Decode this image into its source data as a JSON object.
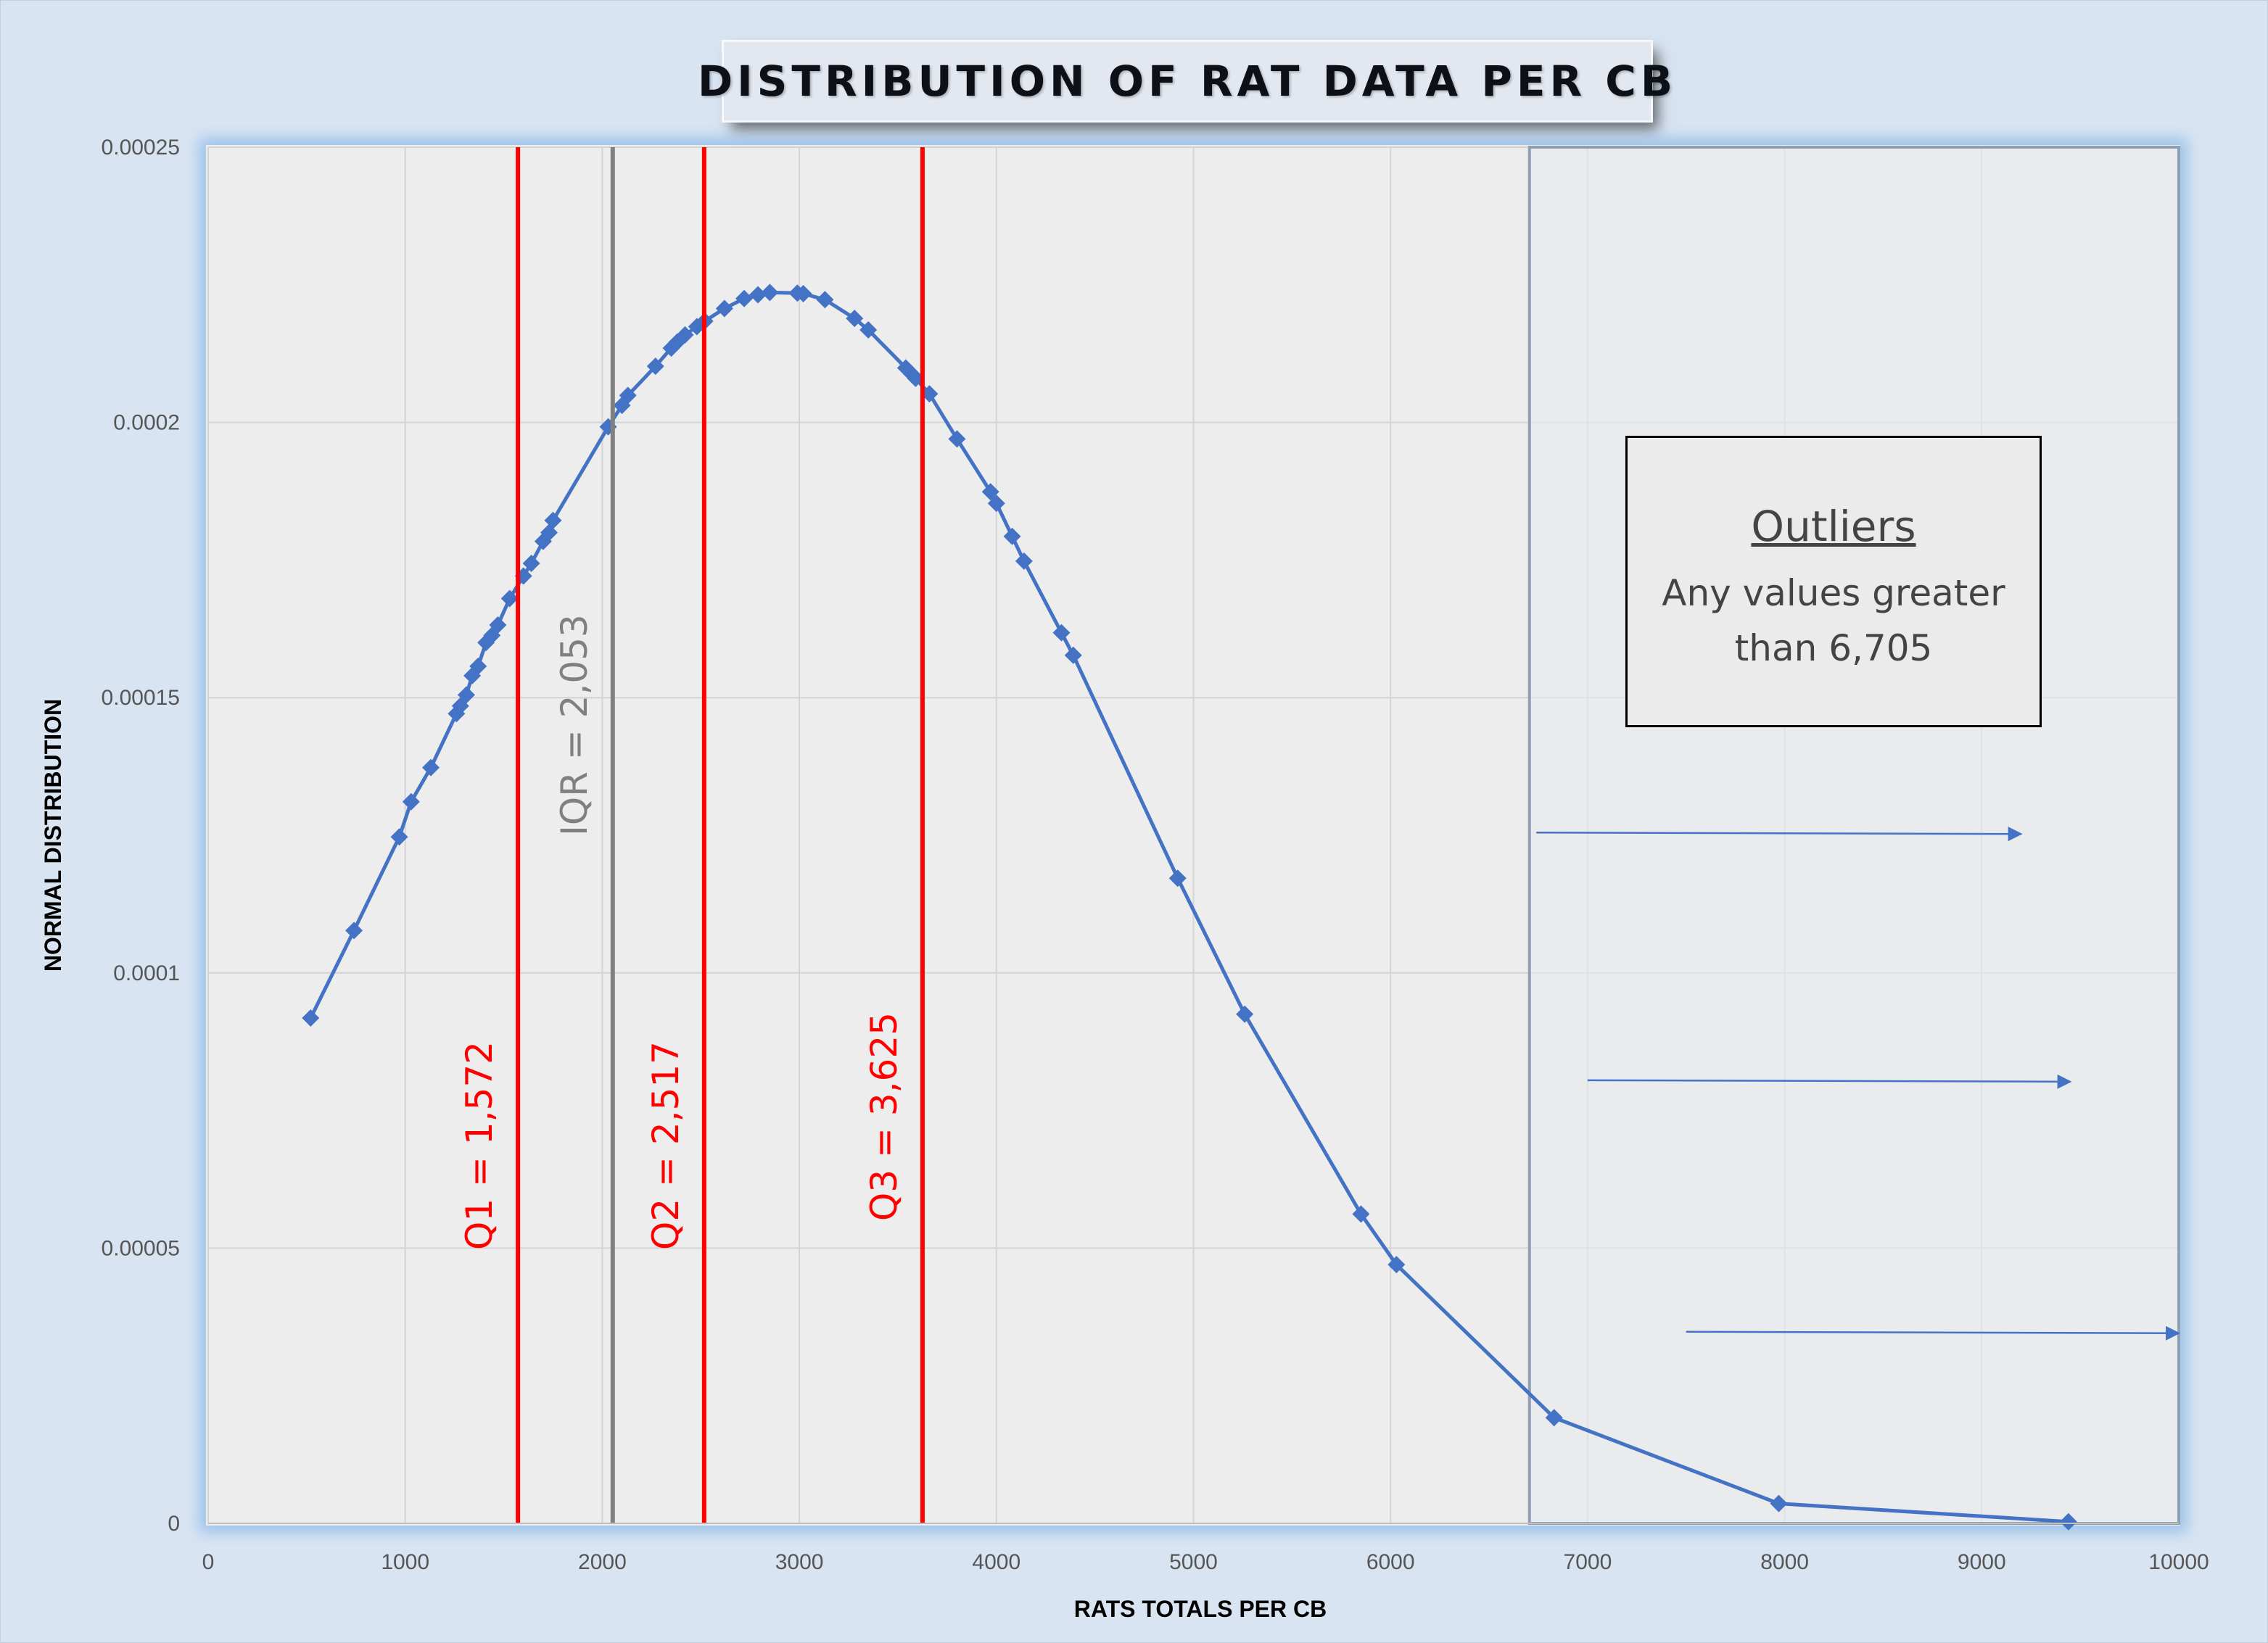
{
  "chart_data": {
    "type": "line",
    "title": "DISTRIBUTION OF RAT DATA PER CB",
    "xlabel": "RATS TOTALS PER CB",
    "ylabel": "NORMAL DISTRIBUTION",
    "xlim": [
      0,
      10000
    ],
    "ylim": [
      0,
      0.00025
    ],
    "x_ticks": [
      "0",
      "1000",
      "2000",
      "3000",
      "4000",
      "5000",
      "6000",
      "7000",
      "8000",
      "9000",
      "10000"
    ],
    "y_ticks": [
      "0",
      "0.00005",
      "0.0001",
      "0.00015",
      "0.0002",
      "0.00025"
    ],
    "grid": true,
    "colors": {
      "series": "#4472c4",
      "quartile_lines": "#ff0000",
      "iqr_line": "#808080",
      "outlier_region": "#e8eaed",
      "outlier_border": "#8fa0b4"
    },
    "series": [
      {
        "x": [
          520,
          740,
          970,
          1030,
          1130,
          1260,
          1280,
          1310,
          1340,
          1370,
          1410,
          1440,
          1470,
          1530,
          1600,
          1640,
          1700,
          1730,
          1750,
          2030,
          2100,
          2130,
          2270,
          2350,
          2380,
          2420,
          2480,
          2520,
          2620,
          2720,
          2790,
          2850,
          2990,
          3020,
          3130,
          3280,
          3350,
          3540,
          3570,
          3590,
          3660,
          3800,
          3970,
          4000,
          4080,
          4140,
          4330,
          4390,
          4920,
          5260,
          5850,
          6030,
          6830,
          7970,
          9440
        ],
        "y": [
          9.18e-05,
          0.0001077,
          0.0001247,
          0.0001311,
          0.0001373,
          0.0001471,
          0.0001485,
          0.0001505,
          0.000154,
          0.0001557,
          0.00016,
          0.0001613,
          0.0001632,
          0.000168,
          0.0001721,
          0.0001744,
          0.0001784,
          0.00018,
          0.0001822,
          0.0001992,
          0.0002031,
          0.0002049,
          0.0002102,
          0.0002135,
          0.0002146,
          0.0002159,
          0.0002174,
          0.0002184,
          0.0002207,
          0.0002225,
          0.0002232,
          0.0002236,
          0.0002235,
          0.0002234,
          0.0002223,
          0.0002189,
          0.0002168,
          0.0002099,
          0.0002088,
          0.000208,
          0.0002052,
          0.000197,
          0.0001874,
          0.0001853,
          0.0001793,
          0.0001748,
          0.0001618,
          0.0001577,
          0.0001172,
          9.25e-05,
          5.62e-05,
          4.7e-05,
          1.92e-05,
          3.6e-06,
          3e-07
        ]
      }
    ],
    "vertical_lines": [
      {
        "x": 1572,
        "label": "Q1 = 1,572",
        "color": "#ff0000"
      },
      {
        "x": 2053,
        "label": "IQR = 2,053",
        "color": "#808080"
      },
      {
        "x": 2517,
        "label": "Q2 = 2,517",
        "color": "#ff0000"
      },
      {
        "x": 3625,
        "label": "Q3 = 3,625",
        "color": "#ff0000"
      }
    ],
    "outlier_region": {
      "x_start": 6705,
      "x_end": 10000
    },
    "annotation": {
      "title": "Outliers",
      "text": "Any values greater than 6,705"
    },
    "arrows": [
      {
        "x_start": 6740,
        "x_end": 9200,
        "y": 0.0001255
      },
      {
        "x_start": 7000,
        "x_end": 9450,
        "y": 8.05e-05
      },
      {
        "x_start": 7500,
        "x_end": 10000,
        "y": 3.48e-05
      }
    ]
  }
}
